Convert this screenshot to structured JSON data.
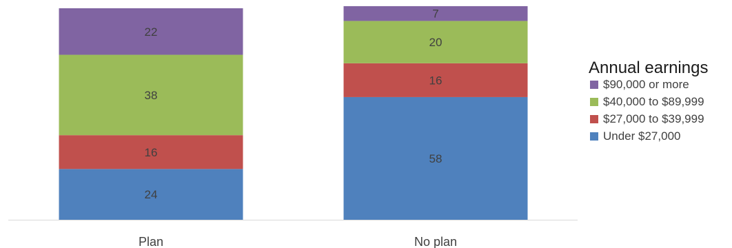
{
  "chart_data": {
    "type": "bar",
    "stacked": true,
    "categories": [
      "Plan",
      "No plan"
    ],
    "series": [
      {
        "name": "Under $27,000",
        "color": "#4f81bd",
        "values": [
          24,
          58
        ]
      },
      {
        "name": "$27,000 to $39,999",
        "color": "#c0504d",
        "values": [
          16,
          16
        ]
      },
      {
        "name": "$40,000 to $89,999",
        "color": "#9bbb59",
        "values": [
          38,
          20
        ]
      },
      {
        "name": "$90,000 or more",
        "color": "#8064a2",
        "values": [
          22,
          7
        ]
      }
    ],
    "ylim": [
      0,
      100
    ],
    "grid": false,
    "data_labels": true,
    "legend": {
      "title": "Annual earnings",
      "position": "right",
      "order": [
        "$90,000 or more",
        "$40,000 to $89,999",
        "$27,000 to $39,999",
        "Under $27,000"
      ]
    }
  }
}
